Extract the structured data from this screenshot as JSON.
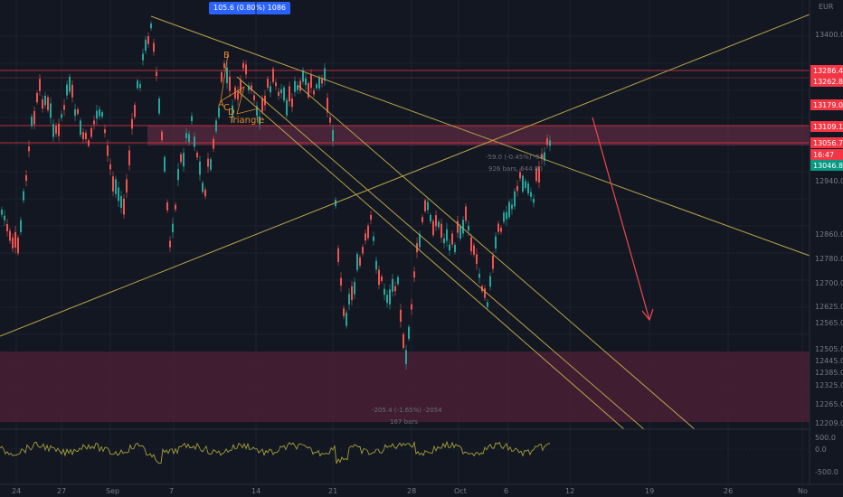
{
  "header": {
    "measure_badge": "105.6 (0.80%) 1086"
  },
  "currency": "EUR",
  "price_axis": {
    "ticks": [
      "13400.0",
      "13179.0",
      "12940.0",
      "12860.0",
      "12780.0",
      "12700.0",
      "12625.0",
      "12565.0",
      "12505.0",
      "12445.0",
      "12385.0",
      "12325.0",
      "12265.0",
      "12209.0"
    ],
    "badges": [
      {
        "label": "13286.4",
        "color": "#f23645"
      },
      {
        "label": "13262.8",
        "color": "#f23645"
      },
      {
        "label": "13179.0",
        "color": "#f23645"
      },
      {
        "label": "13109.1",
        "color": "#f23645"
      },
      {
        "label": "13056.7",
        "color": "#f23645"
      },
      {
        "label": "16:47",
        "color": "#f23645"
      },
      {
        "label": "13046.8",
        "color": "#089981"
      }
    ]
  },
  "time_axis": {
    "ticks": [
      "24",
      "27",
      "Sep",
      "7",
      "14",
      "21",
      "28",
      "Oct",
      "6",
      "12",
      "19",
      "26",
      "No"
    ]
  },
  "oscillator_axis": {
    "ticks": [
      "500.0",
      "0.0",
      "-500.0"
    ]
  },
  "pattern_labels": {
    "b": "B",
    "a": "A",
    "c": "C",
    "d": "D",
    "name": "Triangle"
  },
  "measure_annotations": {
    "right_line1": "-59.0 (-0.45%) -59",
    "right_line2": "926 bars, 644 80",
    "bottom_line1": "-205.4 (-1.65%) -2054",
    "bottom_line2": "167 bars"
  },
  "colors": {
    "background": "#131722",
    "up": "#26a69a",
    "down": "#ef5350",
    "trend": "#b8a44a",
    "zone": "#5b2a40",
    "arrow": "#f0484f"
  }
}
